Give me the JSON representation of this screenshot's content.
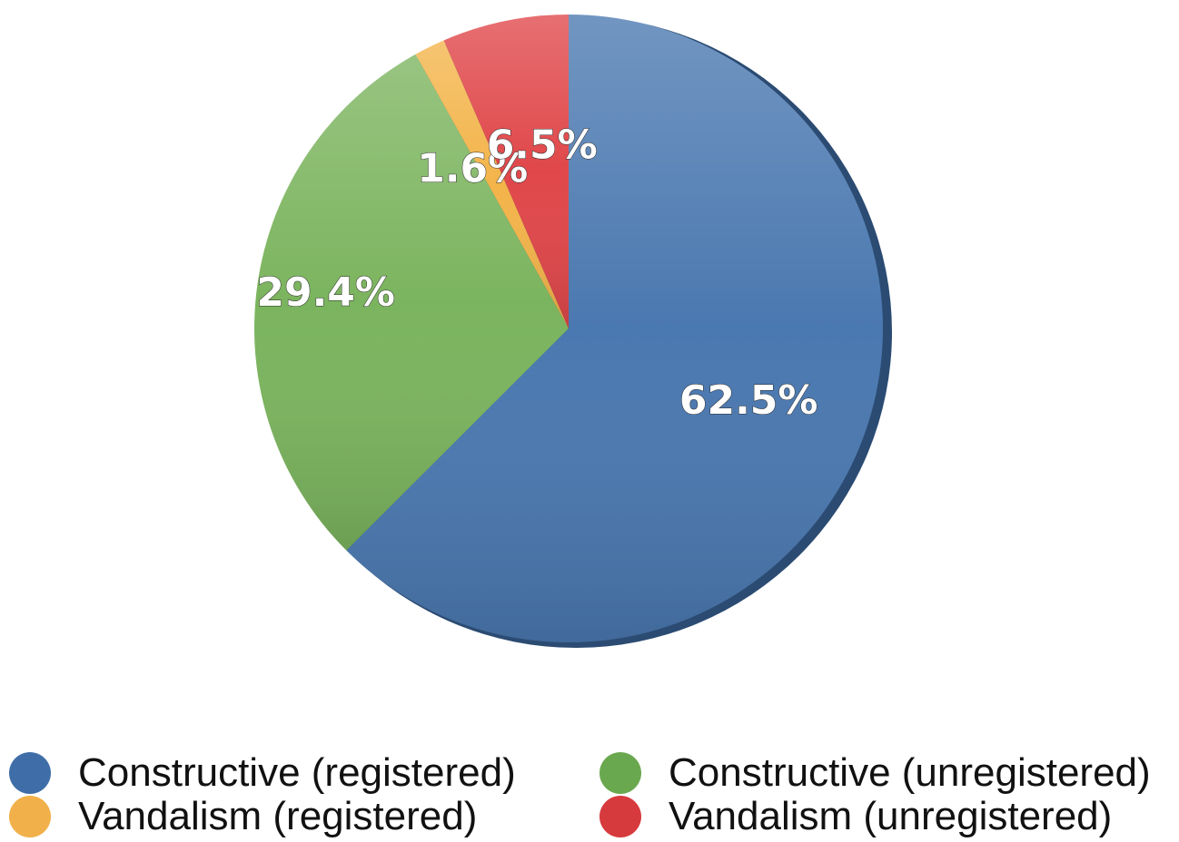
{
  "chart_data": {
    "type": "pie",
    "title": "",
    "slices": [
      {
        "name": "Constructive (registered)",
        "value": 62.5,
        "label": "62.5%",
        "color": "#4a78b0"
      },
      {
        "name": "Constructive (unregistered)",
        "value": 29.4,
        "label": "29.4%",
        "color": "#7bb45e"
      },
      {
        "name": "Vandalism (registered)",
        "value": 1.6,
        "label": "1.6%",
        "color": "#f3b44a"
      },
      {
        "name": "Vandalism (unregistered)",
        "value": 6.5,
        "label": "6.5%",
        "color": "#e0474a"
      }
    ],
    "legend": {
      "placement": "bottom",
      "entries": [
        {
          "label": "Constructive (registered)",
          "color": "#3f6da8"
        },
        {
          "label": "Constructive (unregistered)",
          "color": "#6aa84f"
        },
        {
          "label": "Vandalism (registered)",
          "color": "#f1b04a"
        },
        {
          "label": "Vandalism (unregistered)",
          "color": "#d63a3d"
        }
      ]
    }
  }
}
